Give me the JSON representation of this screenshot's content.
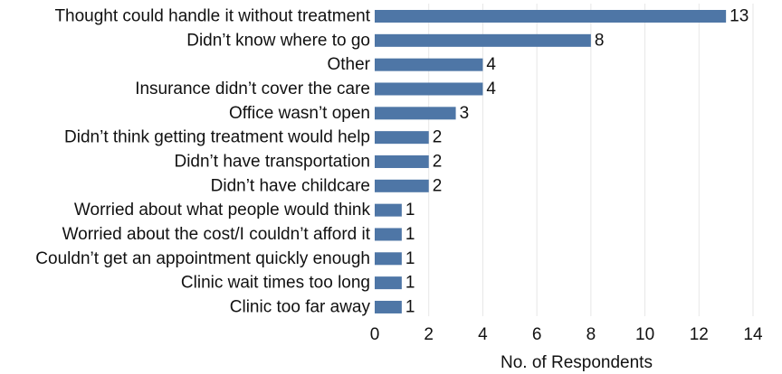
{
  "chart_data": {
    "type": "bar",
    "orientation": "horizontal",
    "categories": [
      "Thought could handle it without treatment",
      "Didn’t know where to go",
      "Other",
      "Insurance didn’t cover the care",
      "Office wasn’t open",
      "Didn’t think getting treatment would help",
      "Didn’t have transportation",
      "Didn’t have childcare",
      "Worried about what people would think",
      "Worried about the cost/I couldn’t afford it",
      "Couldn’t get an appointment quickly enough",
      "Clinic wait times too long",
      "Clinic too far away"
    ],
    "values": [
      13,
      8,
      4,
      4,
      3,
      2,
      2,
      2,
      1,
      1,
      1,
      1,
      1
    ],
    "data_labels": [
      "13",
      "8",
      "4",
      "4",
      "3",
      "2",
      "2",
      "2",
      "1",
      "1",
      "1",
      "1",
      "1"
    ],
    "xticks": [
      0,
      2,
      4,
      6,
      8,
      10,
      12,
      14
    ],
    "xtick_labels": [
      "0",
      "2",
      "4",
      "6",
      "8",
      "10",
      "12",
      "14"
    ],
    "xlim": [
      0,
      14
    ],
    "xlabel": "No. of Respondents",
    "ylabel": "",
    "title": "",
    "grid": "vertical",
    "bar_color": "#4e76a6"
  }
}
